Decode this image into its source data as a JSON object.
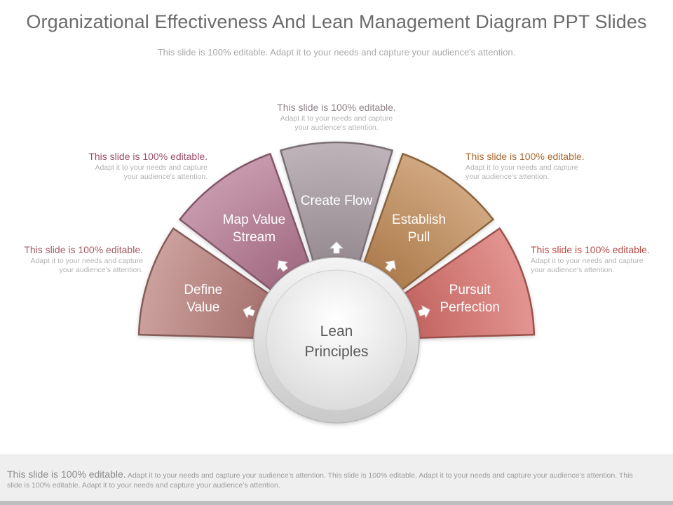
{
  "title": "Organizational Effectiveness And Lean Management Diagram PPT Slides",
  "subtitle": "This slide is 100% editable. Adapt it to your needs and capture your audience's attention.",
  "center": {
    "line1": "Lean",
    "line2": "Principles"
  },
  "segments": [
    {
      "line1": "Define",
      "line2": "Value",
      "color": "#b9807c"
    },
    {
      "line1": "Map Value",
      "line2": "Stream",
      "color": "#b47790"
    },
    {
      "line1": "Create Flow",
      "line2": "",
      "color": "#a89aa2"
    },
    {
      "line1": "Establish",
      "line2": "Pull",
      "color": "#c08a55"
    },
    {
      "line1": "Pursuit",
      "line2": "Perfection",
      "color": "#d9706c"
    }
  ],
  "callouts": [
    {
      "head": "This slide is 100% editable.",
      "body1": "Adapt it to your needs and capture",
      "body2": "your audience's attention.",
      "color": "#a35b62"
    },
    {
      "head": "This slide is 100% editable.",
      "body1": "Adapt it to your needs and capture",
      "body2": "your audience's attention.",
      "color": "#9b4c68"
    },
    {
      "head": "This slide is 100% editable.",
      "body1": "Adapt it to your needs and capture",
      "body2": "your audience's attention.",
      "color": "#8d8288"
    },
    {
      "head": "This slide is 100% editable.",
      "body1": "Adapt it to your needs and capture",
      "body2": "your audience's attention.",
      "color": "#a8682f"
    },
    {
      "head": "This slide is 100% editable.",
      "body1": "Adapt it to your needs and capture",
      "body2": "your audience's attention.",
      "color": "#b94a45"
    }
  ],
  "footer": {
    "lead": "This slide is 100% editable.",
    "body": "Adapt it to your needs and capture your audience’s attention. This slide is 100% editable. Adapt it to your needs and capture your audience’s attention. This slide is 100% editable. Adapt it to your needs and capture your audience’s attention."
  }
}
